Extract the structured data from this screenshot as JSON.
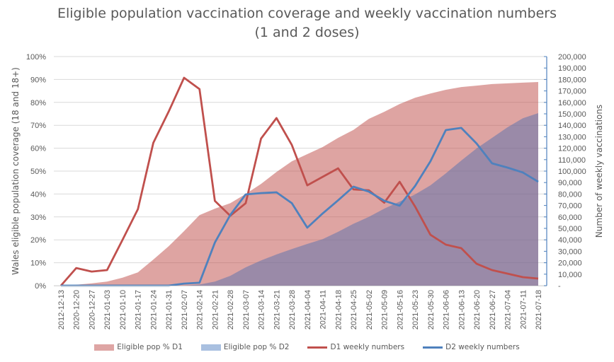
{
  "chart_data": {
    "type": "area+line",
    "title": "Eligible population vaccination coverage and weekly vaccination numbers",
    "subtitle": "(1 and 2 doses)",
    "xlabel": "",
    "ylabel_left": "Wales eligible population coverage (18 and 18+)",
    "ylabel_right": "Number of weekly vaccinations",
    "ylim_left": [
      0,
      100
    ],
    "ylim_right": [
      0,
      200000
    ],
    "grid": true,
    "legend_position": "bottom",
    "left_ticks": [
      "0%",
      "10%",
      "20%",
      "30%",
      "40%",
      "50%",
      "60%",
      "70%",
      "80%",
      "90%",
      "100%"
    ],
    "right_ticks": [
      "-",
      "10,000",
      "20,000",
      "30,000",
      "40,000",
      "50,000",
      "60,000",
      "70,000",
      "80,000",
      "90,000",
      "100,000",
      "110,000",
      "120,000",
      "130,000",
      "140,000",
      "150,000",
      "160,000",
      "170,000",
      "180,000",
      "190,000",
      "200,000"
    ],
    "categories": [
      "2012-12-13",
      "2020-12-20",
      "2020-12-27",
      "2021-01-03",
      "2021-01-10",
      "2021-01-17",
      "2021-01-24",
      "2021-01-31",
      "2021-02-07",
      "2021-02-14",
      "2021-02-21",
      "2021-02-28",
      "2021-03-07",
      "2021-03-14",
      "2021-03-21",
      "2021-03-28",
      "2021-04-04",
      "2021-04-11",
      "2021-04-18",
      "2021-04-25",
      "2021-05-02",
      "2021-05-09",
      "2021-05-16",
      "2021-05-23",
      "2021-05-30",
      "2021-06-06",
      "2021-06-13",
      "2021-06-20",
      "2021-06-27",
      "2021-07-04",
      "2021-07-11",
      "2021-07-18"
    ],
    "series": [
      {
        "name": "Eligible pop % D1",
        "type": "area",
        "axis": "left",
        "color": "#dea5a4",
        "values": [
          0,
          0.4,
          1.0,
          1.8,
          3.5,
          5.8,
          11.4,
          17.2,
          23.8,
          30.8,
          33.6,
          36.0,
          40.0,
          44.4,
          49.6,
          54.3,
          57.4,
          60.5,
          64.5,
          68.0,
          72.8,
          75.9,
          79.3,
          82.0,
          83.9,
          85.5,
          86.7,
          87.3,
          88.0,
          88.3,
          88.6,
          88.9
        ]
      },
      {
        "name": "Eligible pop % D2",
        "type": "area",
        "axis": "left",
        "color": "#a9c0e0",
        "values": [
          0,
          0,
          0,
          0,
          0,
          0,
          0,
          0,
          0,
          0.5,
          1.8,
          4.3,
          8.0,
          11.0,
          13.6,
          16.0,
          18.2,
          20.3,
          23.5,
          27.0,
          30.0,
          33.6,
          36.7,
          39.8,
          43.8,
          49.0,
          54.6,
          59.9,
          64.5,
          69.1,
          73.1,
          75.3
        ]
      },
      {
        "name": "D1 weekly numbers",
        "type": "line",
        "axis": "right",
        "color": "#c0504d",
        "values": [
          0,
          15400,
          12300,
          13600,
          40000,
          66700,
          124700,
          152000,
          181500,
          171600,
          74000,
          61000,
          72000,
          128400,
          146300,
          122800,
          87600,
          95000,
          102400,
          84000,
          83300,
          72400,
          90700,
          69100,
          44400,
          35800,
          32700,
          19100,
          13600,
          10500,
          7400,
          6200
        ]
      },
      {
        "name": "D2 weekly numbers",
        "type": "line",
        "axis": "right",
        "color": "#4f81bd",
        "values": [
          0,
          0,
          0,
          0,
          0,
          0,
          0,
          0,
          1800,
          2500,
          37600,
          61700,
          79600,
          80800,
          81500,
          72000,
          50600,
          63000,
          74500,
          86400,
          82100,
          74100,
          69800,
          87000,
          108600,
          135800,
          137700,
          124100,
          106800,
          103100,
          98800,
          90700
        ]
      }
    ]
  }
}
